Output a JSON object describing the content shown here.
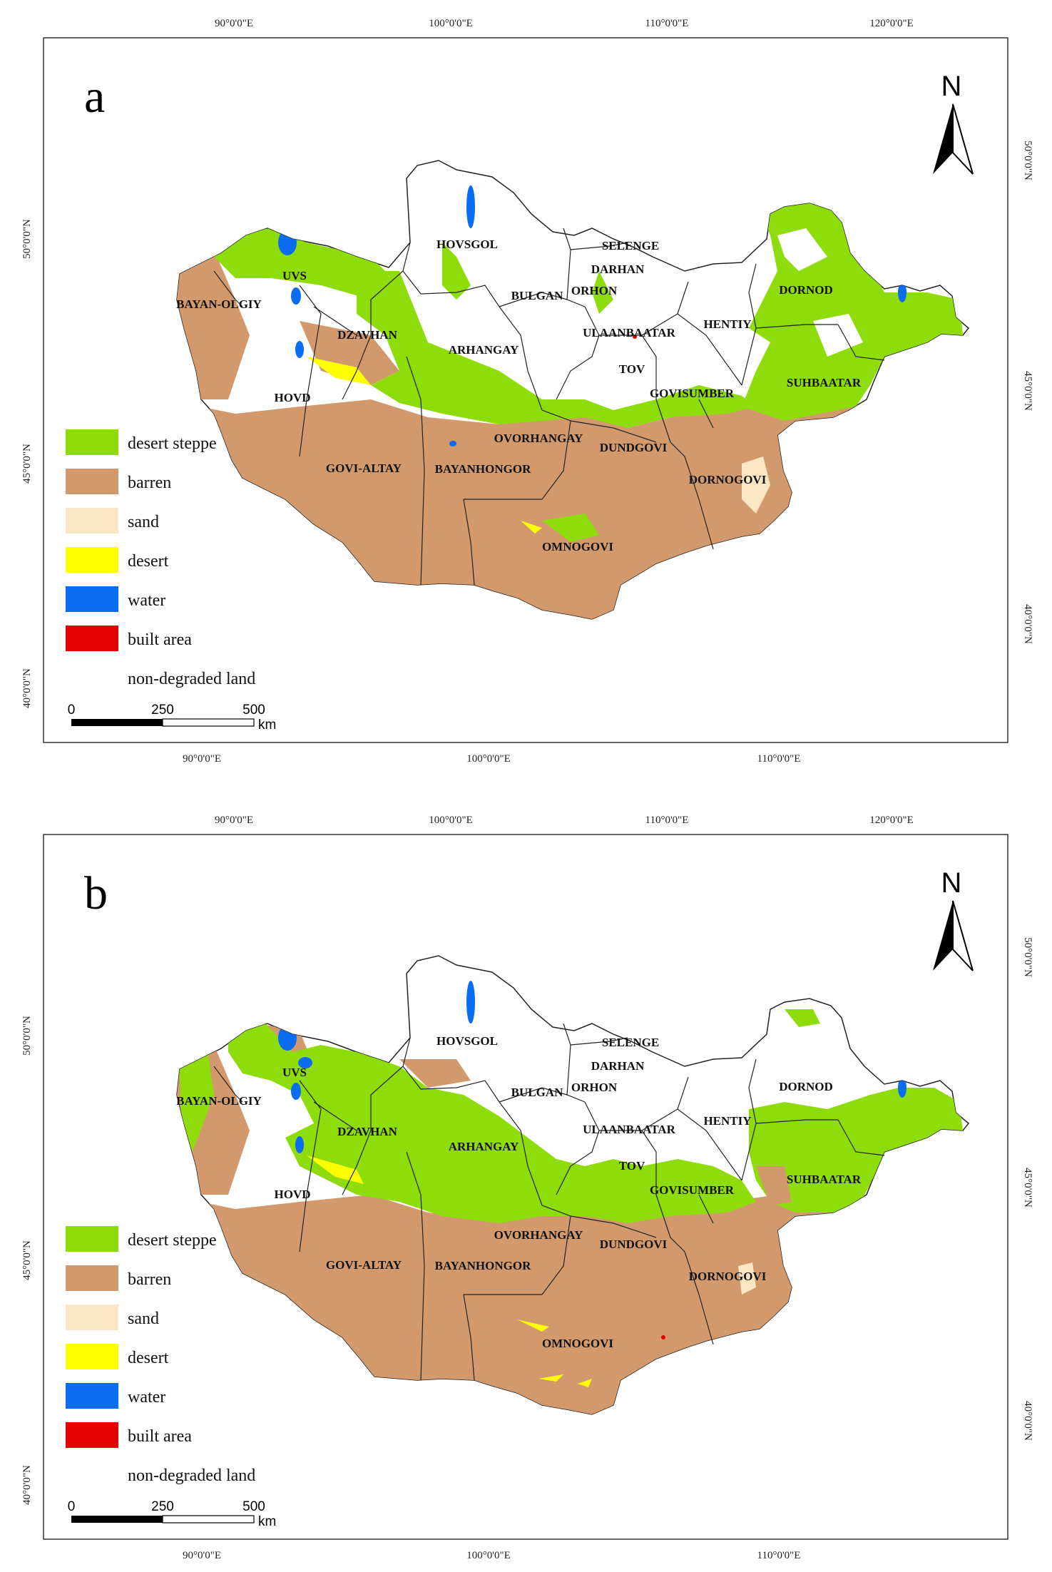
{
  "panels": [
    {
      "letter": "a",
      "top_lon_labels": [
        "90°0'0\"E",
        "100°0'0\"E",
        "110°0'0\"E",
        "120°0'0\"E"
      ],
      "bottom_lon_labels": [
        "90°0'0\"E",
        "100°0'0\"E",
        "110°0'0\"E"
      ],
      "left_lat_labels": [
        "50°0'0\"N",
        "45°0'0\"N",
        "40°0'0\"N"
      ],
      "right_lat_labels": [
        "50°0'0\"N",
        "45°0'0\"N",
        "40°0'0\"N"
      ],
      "north_label": "N",
      "provinces": [
        "HOVSGOL",
        "SELENGE",
        "DARHAN",
        "UVS",
        "BULGAN",
        "ORHON",
        "DORNOD",
        "BAYAN-OLGIY",
        "DZAVHAN",
        "HENTIY",
        "ULAANBAATAR",
        "ARHANGAY",
        "TOV",
        "SUHBAATAR",
        "HOVD",
        "GOVISUMBER",
        "OVORHANGAY",
        "DUNDGOVI",
        "GOVI-ALTAY",
        "BAYANHONGOR",
        "DORNOGOVI",
        "OMNOGOVI"
      ],
      "scale": {
        "ticks": [
          "0",
          "250",
          "500"
        ],
        "unit": "km"
      }
    },
    {
      "letter": "b",
      "top_lon_labels": [
        "90°0'0\"E",
        "100°0'0\"E",
        "110°0'0\"E",
        "120°0'0\"E"
      ],
      "bottom_lon_labels": [
        "90°0'0\"E",
        "100°0'0\"E",
        "110°0'0\"E"
      ],
      "left_lat_labels": [
        "50°0'0\"N",
        "45°0'0\"N",
        "40°0'0\"N"
      ],
      "right_lat_labels": [
        "50°0'0\"N",
        "45°0'0\"N",
        "40°0'0\"N"
      ],
      "north_label": "N",
      "provinces": [
        "HOVSGOL",
        "SELENGE",
        "DARHAN",
        "UVS",
        "BULGAN",
        "ORHON",
        "DORNOD",
        "BAYAN-OLGIY",
        "DZAVHAN",
        "HENTIY",
        "ULAANBAATAR",
        "ARHANGAY",
        "TOV",
        "SUHBAATAR",
        "HOVD",
        "GOVISUMBER",
        "OVORHANGAY",
        "DUNDGOVI",
        "GOVI-ALTAY",
        "BAYANHONGOR",
        "DORNOGOVI",
        "OMNOGOVI"
      ],
      "scale": {
        "ticks": [
          "0",
          "250",
          "500"
        ],
        "unit": "km"
      }
    }
  ],
  "legend": [
    {
      "label": "desert steppe",
      "color": "#8fdc0c"
    },
    {
      "label": "barren",
      "color": "#d29a6c"
    },
    {
      "label": "sand",
      "color": "#fbe6c3"
    },
    {
      "label": "desert",
      "color": "#ffff00"
    },
    {
      "label": "water",
      "color": "#0a6cf0"
    },
    {
      "label": "built area",
      "color": "#e60000"
    },
    {
      "label": "non-degraded land",
      "color": "#ffffff"
    }
  ]
}
